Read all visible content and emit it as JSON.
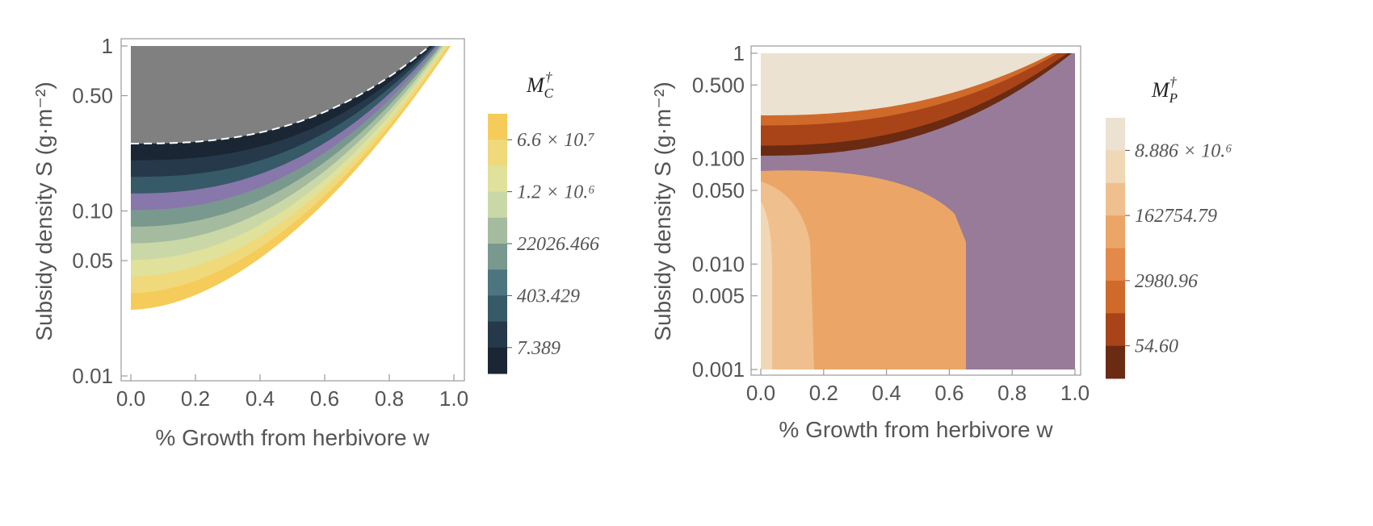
{
  "chart_data": [
    {
      "type": "contour",
      "xlabel": "% Growth from herbivore w",
      "ylabel": "Subsidy density S (g·m⁻²)",
      "xlim": [
        0,
        1
      ],
      "ylim": [
        0.01,
        1
      ],
      "y_scale": "log",
      "x_ticks": [
        "0.0",
        "0.2",
        "0.4",
        "0.6",
        "0.8",
        "1.0"
      ],
      "y_ticks": [
        "0.01",
        "0.05",
        "0.10",
        "0.50",
        "1"
      ],
      "legend": {
        "title": "M",
        "title_sub": "C",
        "title_sup": "†",
        "labels": [
          "6.6 × 10.⁷",
          "1.2 × 10.⁶",
          "22026.466",
          "403.429",
          "7.389"
        ],
        "colors": [
          "#1a2633",
          "#26394a",
          "#365a68",
          "#4d7580",
          "#79998f",
          "#a5bb9f",
          "#cad8a7",
          "#e0e19b",
          "#efd97a",
          "#f5cc5a"
        ]
      },
      "regions": [
        {
          "name": "undefined",
          "color": "#808080"
        },
        {
          "name": "highlight band",
          "color": "#8877aa"
        }
      ]
    },
    {
      "type": "contour",
      "xlabel": "% Growth from herbivore w",
      "ylabel": "Subsidy density S (g·m⁻²)",
      "xlim": [
        0,
        1
      ],
      "ylim": [
        0.001,
        1
      ],
      "y_scale": "log",
      "x_ticks": [
        "0.0",
        "0.2",
        "0.4",
        "0.6",
        "0.8",
        "1.0"
      ],
      "y_ticks": [
        "0.001",
        "0.005",
        "0.010",
        "0.050",
        "0.100",
        "0.500",
        "1"
      ],
      "legend": {
        "title": "M",
        "title_sub": "P",
        "title_sup": "†",
        "labels": [
          "8.886 × 10.⁶",
          "162754.79",
          "2980.96",
          "54.60"
        ],
        "colors": [
          "#6b2a12",
          "#a94418",
          "#d06a2a",
          "#e3894a",
          "#eba667",
          "#efc08e",
          "#f0d7b5",
          "#ebe2d2"
        ]
      },
      "regions": [
        {
          "name": "background",
          "color": "#977b99"
        }
      ]
    }
  ]
}
